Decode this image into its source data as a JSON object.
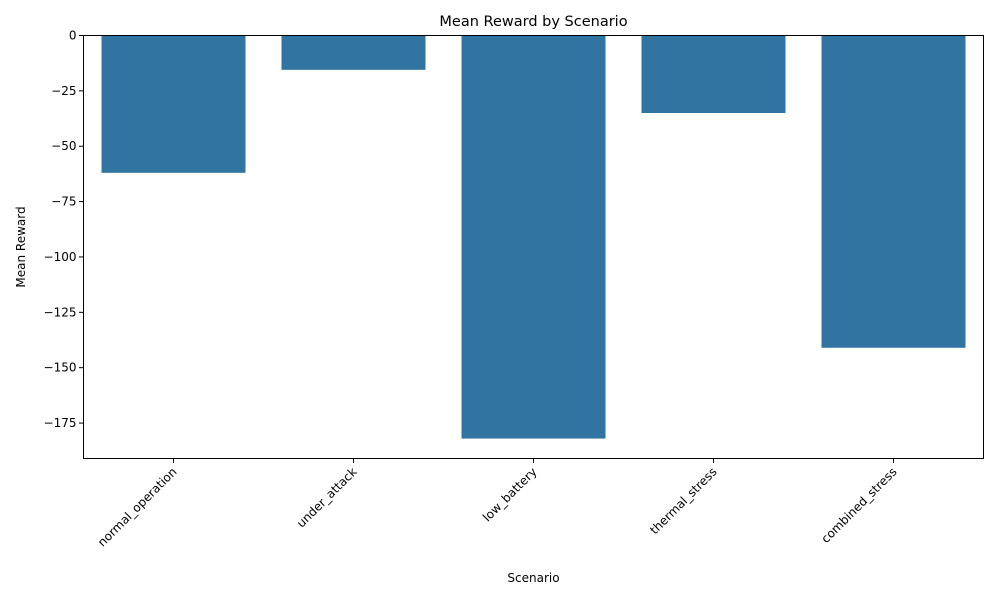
{
  "chart_data": {
    "type": "bar",
    "title": "Mean Reward by Scenario",
    "xlabel": "Scenario",
    "ylabel": "Mean Reward",
    "categories": [
      "normal_operation",
      "under_attack",
      "low_battery",
      "thermal_stress",
      "combined_stress"
    ],
    "values": [
      -62,
      -15.5,
      -182,
      -35,
      -141
    ],
    "ylim": [
      -191,
      0
    ],
    "yticks": [
      0,
      -25,
      -50,
      -75,
      -100,
      -125,
      -150,
      -175
    ],
    "ytick_labels": [
      "0",
      "−25",
      "−50",
      "−75",
      "−100",
      "−125",
      "−150",
      "−175"
    ],
    "bar_color": "#3274a1",
    "grid": false,
    "legend": "none"
  }
}
